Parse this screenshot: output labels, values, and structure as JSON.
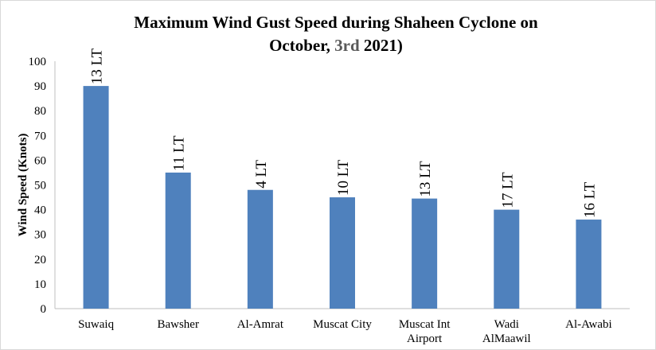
{
  "chart_data": {
    "type": "bar",
    "title_line1": "Maximum Wind  Gust Speed during Shaheen Cyclone on",
    "title_line2_a": "October, ",
    "title_line2_b": "3rd",
    "title_line2_c": " 2021)",
    "ylabel": "Wind Speed (Knots)",
    "xlabel": "",
    "ylim": [
      0,
      100
    ],
    "yticks": [
      0,
      10,
      20,
      30,
      40,
      50,
      60,
      70,
      80,
      90,
      100
    ],
    "grid": false,
    "bar_color": "#4f81bd",
    "categories": [
      [
        "Suwaiq"
      ],
      [
        "Bawsher"
      ],
      [
        "Al-Amrat"
      ],
      [
        "Muscat City"
      ],
      [
        "Muscat Int",
        "Airport"
      ],
      [
        "Wadi",
        "AlMaawil"
      ],
      [
        "Al-Awabi"
      ]
    ],
    "values": [
      90,
      55,
      48,
      45,
      44.5,
      40,
      36
    ],
    "labels": [
      "13 LT",
      "11 LT",
      "4 LT",
      "10 LT",
      "13 LT",
      "17 LT",
      "16 LT"
    ]
  }
}
